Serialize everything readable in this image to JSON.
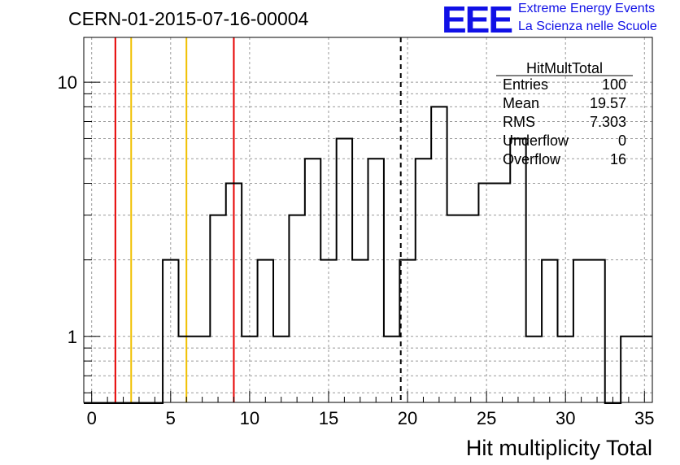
{
  "header": {
    "title": "CERN-01-2015-07-16-00004",
    "logo_text": "EEE",
    "logo_line1": "Extreme Energy Events",
    "logo_line2": "La Scienza nelle Scuole",
    "logo_color": "#1010e6"
  },
  "stats": {
    "name": "HitMultTotal",
    "rows": [
      {
        "label": "Entries",
        "value": "100"
      },
      {
        "label": "Mean",
        "value": "19.57"
      },
      {
        "label": "RMS",
        "value": "7.303"
      },
      {
        "label": "Underflow",
        "value": "0"
      },
      {
        "label": "Overflow",
        "value": "16"
      }
    ]
  },
  "chart_data": {
    "type": "histogram",
    "title": "CERN-01-2015-07-16-00004",
    "xlabel": "Hit multiplicity Total",
    "ylabel": "",
    "xlim": [
      -0.5,
      35.5
    ],
    "ylim": [
      0.55,
      15
    ],
    "ylog": true,
    "grid": true,
    "bin_edges_start": -0.5,
    "bin_width": 1,
    "bin_counts": [
      0,
      0,
      0,
      0,
      0,
      2,
      1,
      1,
      3,
      4,
      1,
      2,
      1,
      3,
      5,
      2,
      6,
      2,
      5,
      1,
      2,
      5,
      8,
      3,
      3,
      4,
      4,
      6,
      1,
      2,
      1,
      2,
      2,
      0,
      1,
      1
    ],
    "x_ticks": [
      0,
      5,
      10,
      15,
      20,
      25,
      30,
      35
    ],
    "y_tick_labels": [
      1,
      10
    ],
    "vertical_lines": [
      {
        "x": 1.5,
        "color": "#e60000",
        "style": "solid"
      },
      {
        "x": 2.5,
        "color": "#f0c000",
        "style": "solid"
      },
      {
        "x": 6.0,
        "color": "#f0c000",
        "style": "solid"
      },
      {
        "x": 9.0,
        "color": "#e60000",
        "style": "solid"
      },
      {
        "x": 19.57,
        "color": "#000000",
        "style": "dashed"
      }
    ]
  }
}
